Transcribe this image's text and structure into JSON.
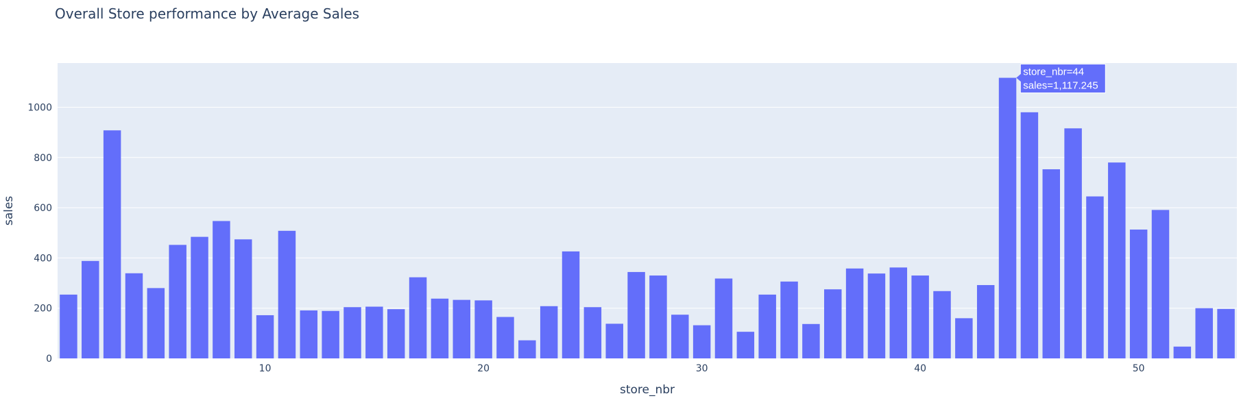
{
  "chart_data": {
    "type": "bar",
    "title": "Overall Store performance by Average Sales",
    "xlabel": "store_nbr",
    "ylabel": "sales",
    "xlim": [
      0.5,
      54.5
    ],
    "ylim": [
      0,
      1176
    ],
    "x_ticks": [
      10,
      20,
      30,
      40,
      50
    ],
    "y_ticks": [
      0,
      200,
      400,
      600,
      800,
      1000
    ],
    "grid": true,
    "bar_color": "#636efa",
    "plot_bg": "#e5ecf6",
    "categories": [
      1,
      2,
      3,
      4,
      5,
      6,
      7,
      8,
      9,
      10,
      11,
      12,
      13,
      14,
      15,
      16,
      17,
      18,
      19,
      20,
      21,
      22,
      23,
      24,
      25,
      26,
      27,
      28,
      29,
      30,
      31,
      32,
      33,
      34,
      35,
      36,
      37,
      38,
      39,
      40,
      41,
      42,
      43,
      44,
      45,
      46,
      47,
      48,
      49,
      50,
      51,
      52,
      53,
      54
    ],
    "values": [
      254,
      388,
      908,
      339,
      280,
      452,
      484,
      547,
      474,
      172,
      508,
      191,
      189,
      204,
      206,
      196,
      323,
      238,
      233,
      231,
      165,
      72,
      208,
      426,
      204,
      138,
      344,
      330,
      174,
      132,
      318,
      106,
      254,
      306,
      137,
      275,
      358,
      338,
      362,
      330,
      268,
      160,
      292,
      1117.245,
      980,
      753,
      916,
      645,
      780,
      513,
      591,
      47,
      200,
      197
    ],
    "tooltip": {
      "line1": "store_nbr=44",
      "line2": "sales=1,117.245"
    }
  }
}
